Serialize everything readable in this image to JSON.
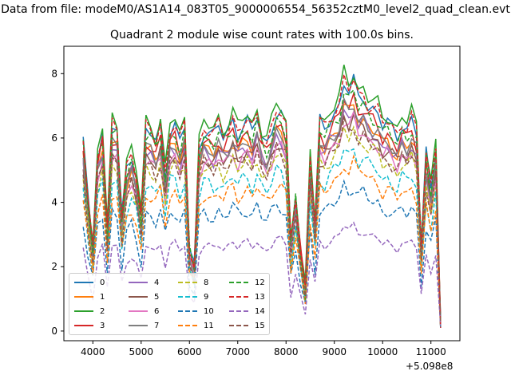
{
  "figure": {
    "suptitle": "Data from file: modeM0/AS1A14_083T05_9000006554_56352cztM0_level2_quad_clean.evt",
    "title": "Quadrant 2 module wise count rates with 100.0s bins.",
    "x_offset_label": "+5.098e8"
  },
  "chart_data": {
    "type": "line",
    "title": "Quadrant 2 module wise count rates with 100.0s bins.",
    "xlabel": "",
    "ylabel": "",
    "xlim": [
      3400,
      11600
    ],
    "ylim": [
      -0.3,
      8.85
    ],
    "x_ticks": [
      4000,
      5000,
      6000,
      7000,
      8000,
      9000,
      10000,
      11000
    ],
    "y_ticks": [
      0,
      2,
      4,
      6,
      8
    ],
    "legend_position": "lower-left",
    "legend_columns": 4,
    "grid": false,
    "x": [
      3800,
      3900,
      4000,
      4100,
      4200,
      4300,
      4400,
      4500,
      4600,
      4700,
      4800,
      4900,
      5000,
      5100,
      5200,
      5300,
      5400,
      5500,
      5600,
      5700,
      5800,
      5900,
      6000,
      6100,
      6200,
      6300,
      6400,
      6500,
      6600,
      6700,
      6800,
      6900,
      7000,
      7100,
      7200,
      7300,
      7400,
      7500,
      7600,
      7700,
      7800,
      7900,
      8000,
      8100,
      8200,
      8300,
      8400,
      8500,
      8600,
      8700,
      8800,
      8900,
      9000,
      9100,
      9200,
      9300,
      9400,
      9500,
      9600,
      9700,
      9800,
      9900,
      10000,
      10100,
      10200,
      10300,
      10400,
      10500,
      10600,
      10700,
      10800,
      10900,
      11000,
      11100,
      11200
    ],
    "base_profile": [
      5.6,
      3.8,
      2.4,
      5.2,
      5.8,
      2.9,
      6.0,
      5.9,
      3.3,
      4.8,
      5.2,
      4.6,
      3.4,
      5.9,
      5.8,
      5.5,
      6.0,
      4.6,
      5.9,
      6.0,
      5.5,
      6.0,
      2.4,
      1.9,
      5.4,
      5.9,
      5.8,
      5.7,
      6.0,
      5.7,
      5.9,
      6.2,
      5.8,
      6.0,
      6.1,
      5.8,
      6.3,
      5.7,
      5.5,
      5.9,
      6.4,
      6.3,
      5.9,
      2.6,
      4.0,
      2.4,
      1.2,
      5.0,
      3.2,
      6.1,
      5.9,
      6.2,
      6.4,
      6.6,
      7.3,
      7.0,
      7.3,
      6.8,
      6.9,
      6.6,
      6.5,
      6.4,
      6.0,
      6.1,
      5.9,
      5.7,
      6.1,
      5.9,
      6.2,
      5.8,
      2.5,
      5.2,
      4.2,
      5.4,
      0.2
    ],
    "series": [
      {
        "name": "0",
        "color": "#1f77b4",
        "style": "solid",
        "scale": 1.06
      },
      {
        "name": "1",
        "color": "#ff7f0e",
        "style": "solid",
        "scale": 0.96
      },
      {
        "name": "2",
        "color": "#2ca02c",
        "style": "solid",
        "scale": 1.1
      },
      {
        "name": "3",
        "color": "#d62728",
        "style": "solid",
        "scale": 1.0
      },
      {
        "name": "4",
        "color": "#9467bd",
        "style": "solid",
        "scale": 0.94
      },
      {
        "name": "5",
        "color": "#8c564b",
        "style": "solid",
        "scale": 0.92
      },
      {
        "name": "6",
        "color": "#e377c2",
        "style": "solid",
        "scale": 0.9
      },
      {
        "name": "7",
        "color": "#7f7f7f",
        "style": "solid",
        "scale": 0.96
      },
      {
        "name": "8",
        "color": "#bcbd22",
        "style": "dashed",
        "scale": 0.86
      },
      {
        "name": "9",
        "color": "#17becf",
        "style": "dashed",
        "scale": 0.78
      },
      {
        "name": "10",
        "color": "#1f77b4",
        "style": "dashed",
        "scale": 0.62
      },
      {
        "name": "11",
        "color": "#ff7f0e",
        "style": "dashed",
        "scale": 0.72
      },
      {
        "name": "12",
        "color": "#2ca02c",
        "style": "dashed",
        "scale": 1.02
      },
      {
        "name": "13",
        "color": "#d62728",
        "style": "dashed",
        "scale": 1.07
      },
      {
        "name": "14",
        "color": "#9467bd",
        "style": "dashed",
        "scale": 0.45
      },
      {
        "name": "15",
        "color": "#8c564b",
        "style": "dashed",
        "scale": 0.88
      }
    ]
  }
}
